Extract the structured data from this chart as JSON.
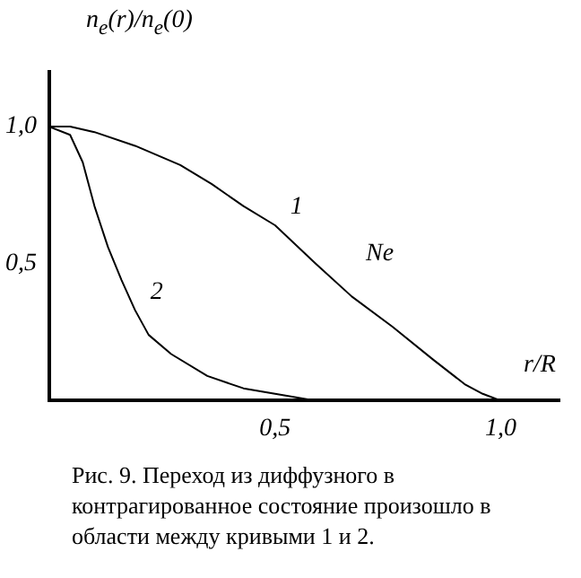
{
  "chart_data": {
    "type": "line",
    "ylabel": "n$_{e}$(r)/n$_{e}$(0)",
    "xlabel": "r/R",
    "xlim": [
      0,
      1.13
    ],
    "ylim": [
      0,
      1.2
    ],
    "xticks": [
      {
        "value": 0.5,
        "label": "0,5"
      },
      {
        "value": 1.0,
        "label": "1,0"
      }
    ],
    "yticks": [
      {
        "value": 0.5,
        "label": "0,5"
      },
      {
        "value": 1.0,
        "label": "1,0"
      }
    ],
    "grid": false,
    "legend": false,
    "marker": "none",
    "line_style": "solid",
    "series": [
      {
        "name": "1",
        "color": "#000000",
        "x": [
          0,
          0.046,
          0.1,
          0.19,
          0.29,
          0.36,
          0.43,
          0.5,
          0.59,
          0.67,
          0.76,
          0.85,
          0.92,
          0.96,
          1.0
        ],
        "values": [
          1.0,
          1.0,
          0.98,
          0.93,
          0.86,
          0.79,
          0.71,
          0.64,
          0.5,
          0.38,
          0.27,
          0.15,
          0.06,
          0.025,
          0
        ]
      },
      {
        "name": "2",
        "color": "#000000",
        "x": [
          0,
          0.046,
          0.074,
          0.1,
          0.13,
          0.16,
          0.19,
          0.22,
          0.27,
          0.35,
          0.43,
          0.5,
          0.59
        ],
        "values": [
          1.0,
          0.97,
          0.87,
          0.71,
          0.56,
          0.44,
          0.33,
          0.24,
          0.17,
          0.09,
          0.045,
          0.025,
          0
        ]
      }
    ],
    "annotations": [
      "Ne",
      "Рис. 9. Переход из диффузного в контрагированное состояние произошло в области между кривыми 1 и 2."
    ]
  }
}
